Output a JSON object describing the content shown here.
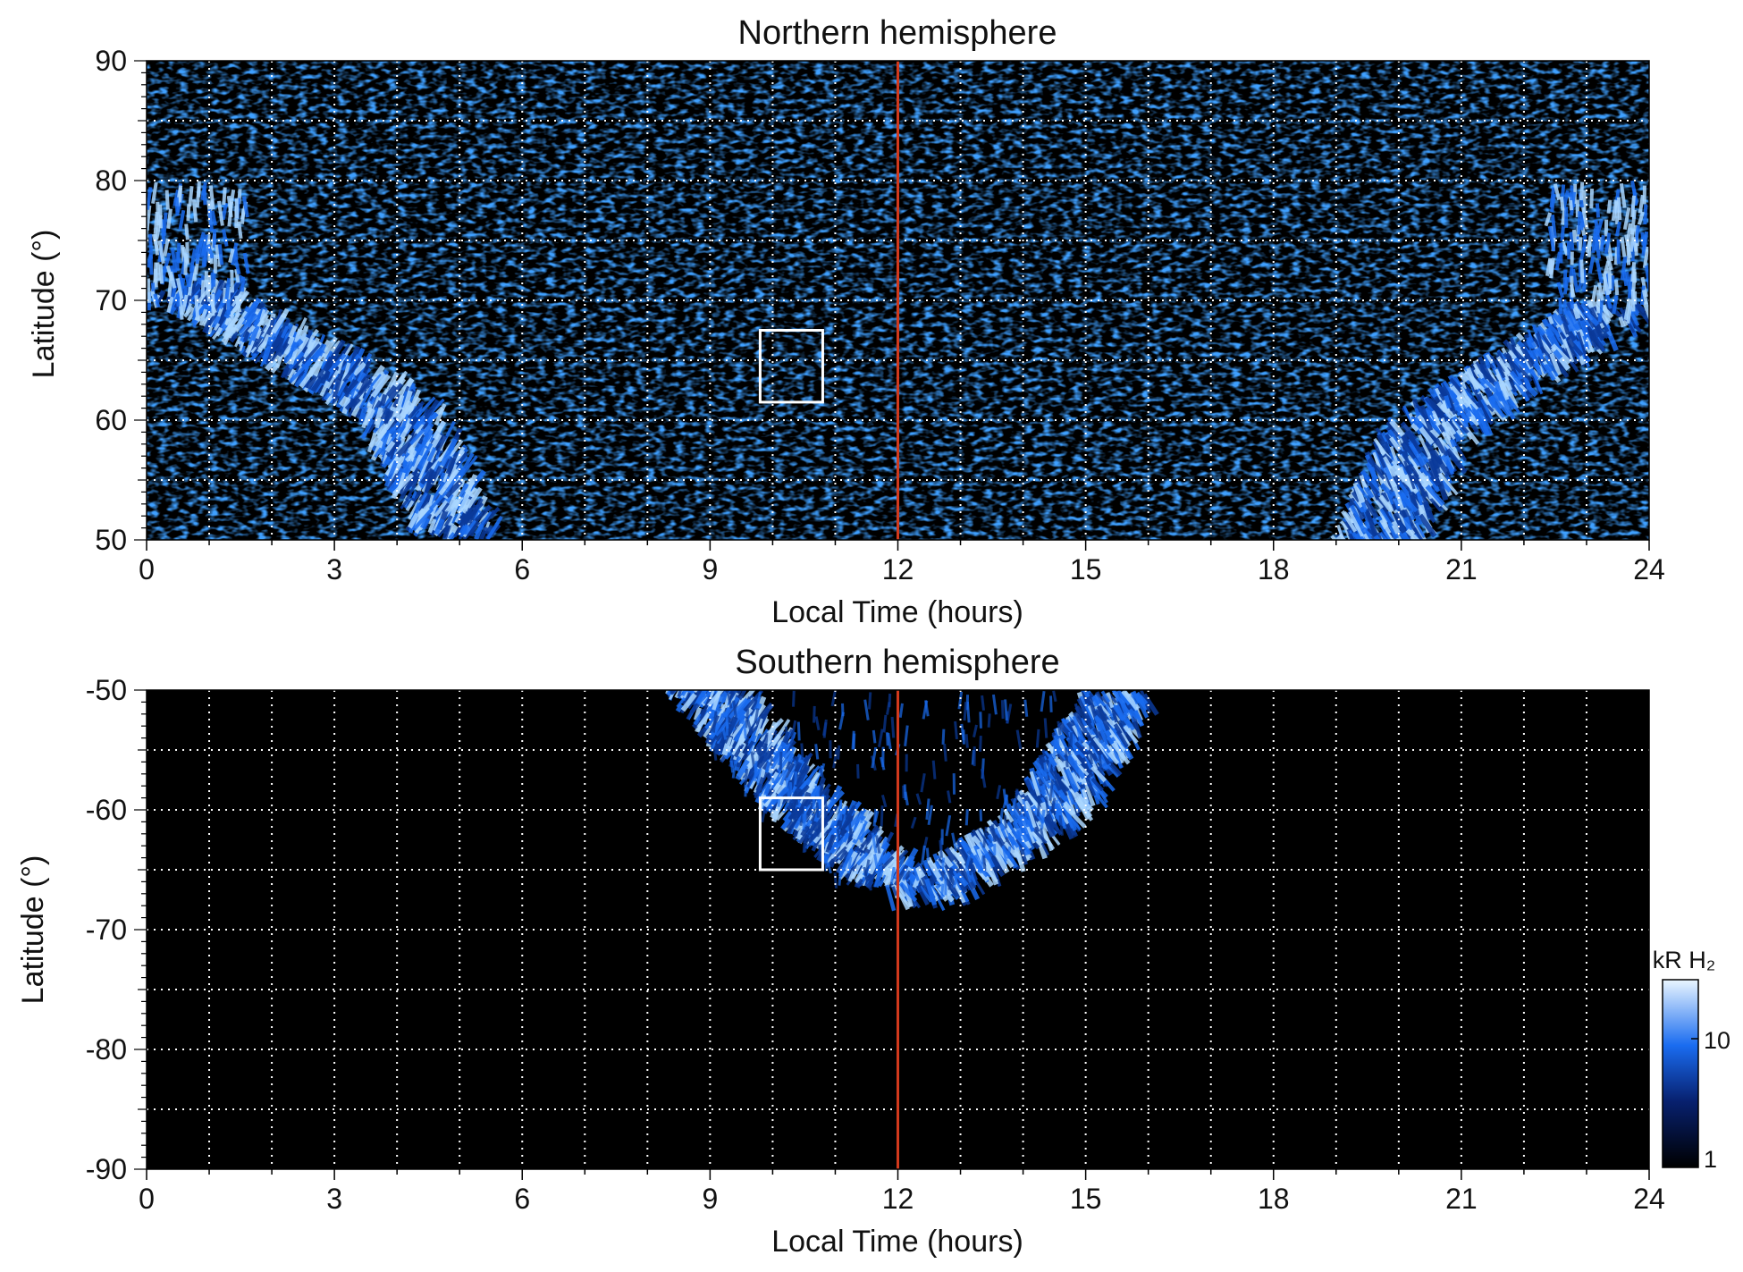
{
  "figure": {
    "colors": {
      "background": "#000000",
      "aurora_low": "#0a3a9a",
      "aurora_mid": "#1a6cf0",
      "aurora_high": "#a9d6ff",
      "noon_line": "#d2391c",
      "grid": "#ffffff",
      "box": "#ffffff"
    }
  },
  "chart_data": [
    {
      "type": "heatmap",
      "title": "Northern hemisphere",
      "xlabel": "Local Time (hours)",
      "ylabel": "Latitude (°)",
      "xlim": [
        0,
        24
      ],
      "ylim": [
        50,
        90
      ],
      "xticks": [
        "0",
        "3",
        "6",
        "9",
        "12",
        "15",
        "18",
        "21",
        "24"
      ],
      "yticks": [
        "50",
        "60",
        "70",
        "80",
        "90"
      ],
      "ytick_values": [
        50,
        60,
        70,
        80,
        90
      ],
      "grid": true,
      "x_gridlines": [
        1,
        2,
        3,
        4,
        5,
        6,
        7,
        8,
        9,
        10,
        11,
        12,
        13,
        14,
        15,
        16,
        17,
        18,
        19,
        20,
        21,
        22,
        23
      ],
      "y_gridlines": [
        55,
        60,
        65,
        70,
        75,
        80,
        85
      ],
      "noon_line_lt": 12,
      "annotation_box": {
        "lt": [
          9.8,
          10.8
        ],
        "lat": [
          61.5,
          67.5
        ]
      },
      "aurora_arc": {
        "lt_at_lat": [
          {
            "lat": 50,
            "lt_dawn": 4.2,
            "lt_dusk": 20.2
          },
          {
            "lat": 60,
            "lt_dawn": 3.3,
            "lt_dusk": 21.0
          },
          {
            "lat": 70,
            "lt_dawn": 0.0,
            "lt_dusk": 24.0
          }
        ],
        "cap_lat": 80
      }
    },
    {
      "type": "heatmap",
      "title": "Southern hemisphere",
      "xlabel": "Local Time (hours)",
      "ylabel": "Latitude (°)",
      "xlim": [
        0,
        24
      ],
      "ylim": [
        -90,
        -50
      ],
      "xticks": [
        "0",
        "3",
        "6",
        "9",
        "12",
        "15",
        "18",
        "21",
        "24"
      ],
      "yticks": [
        "-90",
        "-80",
        "-70",
        "-60",
        "-50"
      ],
      "ytick_values": [
        -90,
        -80,
        -70,
        -60,
        -50
      ],
      "grid": true,
      "x_gridlines": [
        1,
        2,
        3,
        4,
        5,
        6,
        7,
        8,
        9,
        10,
        11,
        12,
        13,
        14,
        15,
        16,
        17,
        18,
        19,
        20,
        21,
        22,
        23
      ],
      "y_gridlines": [
        -85,
        -80,
        -75,
        -70,
        -65,
        -60,
        -55
      ],
      "noon_line_lt": 12,
      "annotation_box": {
        "lt": [
          9.8,
          10.8
        ],
        "lat": [
          -65,
          -59
        ]
      },
      "aurora_arc": {
        "lt_at_lat": [
          {
            "lat": -50,
            "lt_dawn": 8.2,
            "lt_dusk": 16.0
          },
          {
            "lat": -60,
            "lt_dawn": 9.8,
            "lt_dusk": 14.8
          },
          {
            "lat": -66.5,
            "lt_dawn": 11.2,
            "lt_dusk": 12.8
          }
        ]
      }
    }
  ],
  "colorbar": {
    "label": "kR H₂",
    "ticks": [
      "1",
      "10"
    ],
    "scale": "log"
  }
}
